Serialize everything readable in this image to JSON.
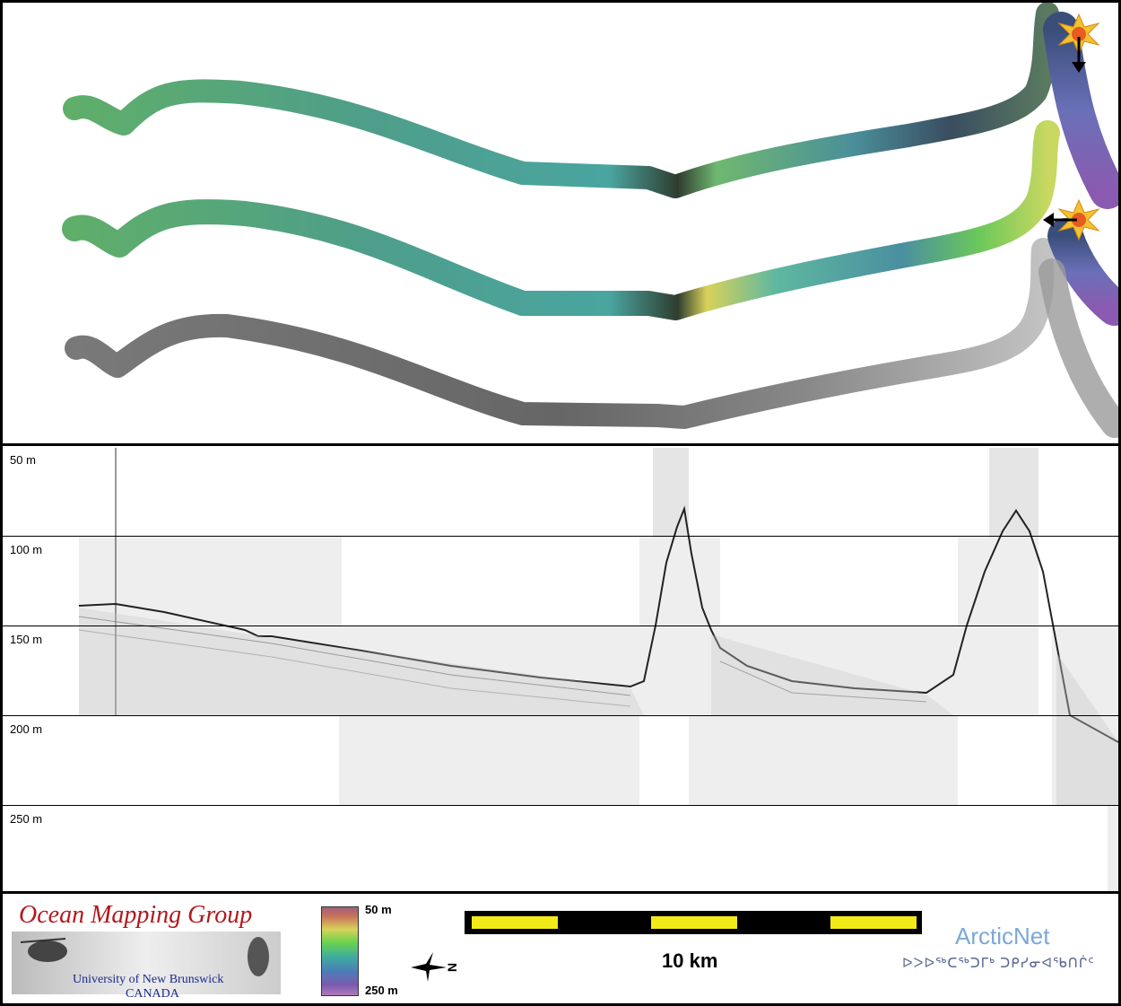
{
  "profile": {
    "depth_labels": [
      "50 m",
      "100 m",
      "150 m",
      "200 m",
      "250 m"
    ]
  },
  "legend": {
    "logo_title": "Ocean Mapping Group",
    "logo_university": "University of New Brunswick",
    "logo_country": "CANADA",
    "colorbar_top": "50 m",
    "colorbar_bottom": "250 m",
    "scale_label": "10 km",
    "compass_letter": "N",
    "partner_name": "ArcticNet",
    "partner_syllabics": "ᐅᐳᐅᖅᑕᖅᑐᒥᒃ ᑐᑭᓯᓂᐊᖃᑎᒌᑦ"
  },
  "colors": {
    "swath_bathymetry": "#4fa89a",
    "swath_backscatter": "#707070",
    "event_marker": "#f2c230",
    "scale_fill": "#f2ea18",
    "logo_red": "#b3181c",
    "arcticnet_blue": "#7ba8d8"
  }
}
